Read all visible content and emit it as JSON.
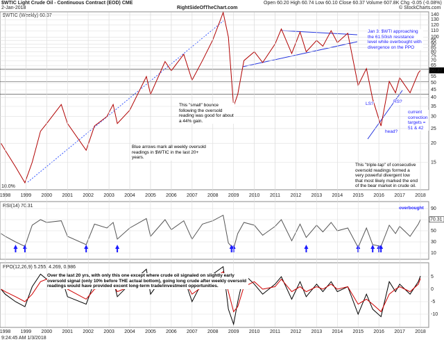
{
  "chart_data": [
    {
      "type": "line",
      "title": "$WTIC Light Crude Oil - Continuous Contract (EOD) CME",
      "subtitle": "2-Jan-2018",
      "site": "RightSideOfTheChart.com",
      "ohlc": "Open 60.20  High 60.74  Low 60.10  Close 60.37  Volume 607.8K  Chg -0.05 (-0.08%)",
      "credit": "© StockCharts.com",
      "log_scale": true,
      "grid": true,
      "x": [
        1997.8,
        1998.0,
        1998.5,
        1998.95,
        1999.3,
        1999.7,
        2000.0,
        2000.7,
        2001.0,
        2001.9,
        2002.3,
        2002.9,
        2003.2,
        2003.4,
        2004.0,
        2004.8,
        2005.0,
        2005.7,
        2006.0,
        2006.6,
        2007.0,
        2007.5,
        2008.0,
        2008.5,
        2008.75,
        2009.0,
        2009.2,
        2009.5,
        2010.0,
        2010.4,
        2011.0,
        2011.3,
        2011.8,
        2012.2,
        2012.5,
        2013.0,
        2013.3,
        2013.7,
        2014.0,
        2014.5,
        2015.0,
        2015.4,
        2015.7,
        2016.1,
        2016.5,
        2016.8,
        2017.0,
        2017.5,
        2017.9,
        2018.0
      ],
      "series": [
        {
          "name": "$WTIC (Weekly) 60.37",
          "color": "#b00000",
          "values": [
            20,
            18,
            14,
            11,
            15,
            24,
            27,
            36,
            27,
            18,
            26,
            30,
            36,
            27,
            33,
            55,
            42,
            69,
            60,
            77,
            52,
            70,
            96,
            145,
            100,
            35,
            42,
            70,
            80,
            68,
            90,
            113,
            78,
            108,
            80,
            95,
            87,
            110,
            92,
            106,
            48,
            62,
            39,
            26,
            51,
            43,
            54,
            43,
            58,
            60.37
          ]
        }
      ],
      "xlim": [
        1997.75,
        2018.4
      ],
      "xticks": [
        1998,
        1999,
        2000,
        2001,
        2002,
        2003,
        2004,
        2005,
        2006,
        2007,
        2008,
        2009,
        2010,
        2011,
        2012,
        2013,
        2014,
        2015,
        2016,
        2017,
        2018
      ],
      "ylim": [
        10,
        145
      ],
      "yticks": [
        15,
        20,
        25,
        30,
        35,
        40,
        45,
        50,
        55,
        60,
        65,
        70,
        75,
        80,
        85,
        90,
        95,
        100,
        110,
        120,
        130,
        140
      ],
      "hlines": [
        61.5,
        51,
        42
      ],
      "pct_label": "10.0%",
      "annotations": [
        "Jan 3: $WTI approaching the 61.50ish resistance level while overbought with divergence on the PPO",
        "This \"small\" bounce following the oversold reading was good for about a 44% gain.",
        "Blue arrows mark all weekly oversold readings in $WTIC in the last 20+ years.",
        "This \"triple-tap\" of consecutive oversold readings formed a very powerful divergent low that most likely marked the end of the bear market in crude oil.",
        "current correction targets = 51 & 42",
        "head?",
        "LS?",
        "RS?"
      ]
    },
    {
      "type": "line",
      "title": "RSI(14) 70.31",
      "x": [
        1997.8,
        1998.0,
        1998.5,
        1998.95,
        1999.3,
        1999.7,
        2000.0,
        2000.7,
        2001.0,
        2001.9,
        2002.3,
        2002.9,
        2003.2,
        2003.4,
        2004.0,
        2004.8,
        2005.0,
        2005.7,
        2006.0,
        2006.6,
        2007.0,
        2007.5,
        2008.0,
        2008.5,
        2008.75,
        2009.0,
        2009.2,
        2009.5,
        2010.0,
        2010.4,
        2011.0,
        2011.3,
        2011.8,
        2012.2,
        2012.5,
        2013.0,
        2013.3,
        2013.7,
        2014.0,
        2014.5,
        2015.0,
        2015.4,
        2015.7,
        2016.1,
        2016.5,
        2016.8,
        2017.0,
        2017.5,
        2017.9,
        2018.0
      ],
      "series": [
        {
          "color": "#555555",
          "values": [
            45,
            40,
            30,
            22,
            60,
            70,
            65,
            68,
            40,
            25,
            62,
            55,
            65,
            35,
            55,
            72,
            40,
            70,
            52,
            68,
            35,
            62,
            68,
            78,
            28,
            18,
            45,
            65,
            60,
            42,
            58,
            70,
            32,
            62,
            38,
            60,
            48,
            65,
            50,
            55,
            20,
            55,
            25,
            22,
            60,
            45,
            58,
            40,
            62,
            70.31
          ]
        }
      ],
      "xlim": [
        1997.75,
        2018.4
      ],
      "ylim": [
        0,
        100
      ],
      "yticks": [
        10,
        30,
        50,
        70,
        90
      ],
      "oversold_x": [
        1998.5,
        1998.95,
        2001.9,
        2003.4,
        2008.9,
        2009.0,
        2012.5,
        2015.0,
        2015.7,
        2016.0,
        2016.1
      ],
      "annotation": "overbought"
    },
    {
      "type": "line",
      "title": "PPO(12,26,9) 5.255, 4.269, 0.986",
      "x": [
        1997.8,
        1998.0,
        1998.5,
        1998.95,
        1999.3,
        1999.7,
        2000.0,
        2000.7,
        2001.0,
        2001.9,
        2002.3,
        2002.9,
        2003.2,
        2003.4,
        2004.0,
        2004.8,
        2005.0,
        2005.7,
        2006.0,
        2006.6,
        2007.0,
        2007.5,
        2008.0,
        2008.5,
        2008.75,
        2009.0,
        2009.2,
        2009.5,
        2010.0,
        2010.4,
        2011.0,
        2011.3,
        2011.8,
        2012.2,
        2012.5,
        2013.0,
        2013.3,
        2013.7,
        2014.0,
        2014.5,
        2015.0,
        2015.4,
        2015.7,
        2016.1,
        2016.5,
        2016.8,
        2017.0,
        2017.5,
        2017.9,
        2018.0
      ],
      "series": [
        {
          "color": "#000000",
          "values": [
            0,
            -2,
            -5,
            -7,
            1,
            6,
            4,
            5,
            -3,
            -6,
            3,
            1,
            4,
            -3,
            2,
            8,
            -2,
            6,
            1,
            5,
            -5,
            3,
            6,
            9,
            -8,
            -14,
            -5,
            6,
            2,
            -2,
            2,
            5,
            -4,
            3,
            -3,
            2,
            -1,
            3,
            -1,
            1,
            -10,
            -2,
            -8,
            -11,
            3,
            -1,
            2,
            -2,
            3,
            5.255
          ]
        },
        {
          "color": "#d00000",
          "values": [
            0,
            -1,
            -3,
            -5,
            -2,
            3,
            4,
            4,
            0,
            -4,
            0,
            1,
            2,
            -1,
            1,
            5,
            1,
            4,
            2,
            4,
            -2,
            1,
            4,
            7,
            -1,
            -9,
            -7,
            1,
            3,
            0,
            1,
            4,
            -1,
            1,
            -1,
            1,
            0,
            2,
            0,
            1,
            -6,
            -4,
            -6,
            -9,
            -2,
            0,
            1,
            -1,
            2,
            4.269
          ]
        }
      ],
      "xlim": [
        1997.75,
        2018.4
      ],
      "xticks": [
        1998,
        1999,
        2000,
        2001,
        2002,
        2003,
        2004,
        2005,
        2006,
        2007,
        2008,
        2009,
        2010,
        2011,
        2012,
        2013,
        2014,
        2015,
        2016,
        2017,
        2018
      ],
      "ylim": [
        -15,
        10
      ],
      "yticks": [
        -10,
        -5,
        0,
        5
      ],
      "annotation": "Over the last 20 yrs, with only this one except where crude oil signaled on slightly early oversold signal (only 10% before THE actual bottom), going long crude after weekly oversold readings would have provided excent long-term trade/investment opportunities.",
      "footer": "9:24:45 AM 1/3/2018"
    }
  ]
}
